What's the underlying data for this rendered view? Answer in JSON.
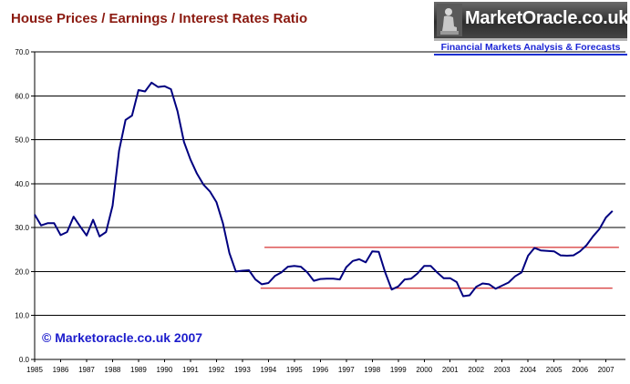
{
  "title": "House Prices  / Earnings / Interest Rates Ratio",
  "logo": {
    "name": "MarketOracle.co.uk",
    "tagline": "Financial Markets Analysis & Forecasts"
  },
  "copyright": "© Marketoracle.co.uk 2007",
  "colors": {
    "title": "#8b1a10",
    "line": "#000080",
    "ref_lines": "#cc0000",
    "copyright": "#1c1ccc",
    "tagline": "#1c26d6"
  },
  "chart_data": {
    "type": "line",
    "title": "House Prices  / Earnings / Interest Rates Ratio",
    "xlabel": "",
    "ylabel": "",
    "ylim": [
      0,
      70
    ],
    "grid": true,
    "x_tick_labels": [
      "1985",
      "1986",
      "1987",
      "1988",
      "1989",
      "1990",
      "1991",
      "1992",
      "1993",
      "1994",
      "1995",
      "1996",
      "1997",
      "1998",
      "1999",
      "2000",
      "2001",
      "2002",
      "2003",
      "2004",
      "2005",
      "2006",
      "2007"
    ],
    "y_tick_labels": [
      "0.0",
      "10.0",
      "20.0",
      "30.0",
      "40.0",
      "50.0",
      "60.0",
      "70.0"
    ],
    "series": [
      {
        "x": [
          1985.0,
          1985.25,
          1985.5,
          1985.75,
          1986.0,
          1986.25,
          1986.5,
          1986.75,
          1987.0,
          1987.25,
          1987.5,
          1987.75,
          1988.0,
          1988.25,
          1988.5,
          1988.75,
          1989.0,
          1989.25,
          1989.5,
          1989.75,
          1990.0,
          1990.25,
          1990.5,
          1990.75,
          1991.0,
          1991.25,
          1991.5,
          1991.75,
          1992.0,
          1992.25,
          1992.5,
          1992.75,
          1993.0,
          1993.25,
          1993.5,
          1993.75,
          1994.0,
          1994.25,
          1994.5,
          1994.75,
          1995.0,
          1995.25,
          1995.5,
          1995.75,
          1996.0,
          1996.25,
          1996.5,
          1996.75,
          1997.0,
          1997.25,
          1997.5,
          1997.75,
          1998.0,
          1998.25,
          1998.5,
          1998.75,
          1999.0,
          1999.25,
          1999.5,
          1999.75,
          2000.0,
          2000.25,
          2000.5,
          2000.75,
          2001.0,
          2001.25,
          2001.5,
          2001.75,
          2002.0,
          2002.25,
          2002.5,
          2002.75,
          2003.0,
          2003.25,
          2003.5,
          2003.75,
          2004.0,
          2004.25,
          2004.5,
          2004.75,
          2005.0,
          2005.25,
          2005.5,
          2005.75,
          2006.0,
          2006.25,
          2006.5,
          2006.75,
          2007.0,
          2007.25
        ],
        "values": [
          33.0,
          30.5,
          31.0,
          31.0,
          28.3,
          29.0,
          32.5,
          30.3,
          28.2,
          31.8,
          28.0,
          29.0,
          35.0,
          47.5,
          54.5,
          55.5,
          61.3,
          61.0,
          63.0,
          62.0,
          62.2,
          61.5,
          56.5,
          49.5,
          45.5,
          42.3,
          39.8,
          38.2,
          35.8,
          31.0,
          24.2,
          20.0,
          20.2,
          20.3,
          18.2,
          17.1,
          17.4,
          19.0,
          19.8,
          21.1,
          21.3,
          21.1,
          19.8,
          17.9,
          18.3,
          18.4,
          18.4,
          18.2,
          21.0,
          22.4,
          22.8,
          22.1,
          24.6,
          24.5,
          19.8,
          15.9,
          16.6,
          18.2,
          18.4,
          19.6,
          21.3,
          21.3,
          19.8,
          18.5,
          18.5,
          17.6,
          14.4,
          14.6,
          16.5,
          17.3,
          17.1,
          16.1,
          16.8,
          17.5,
          18.9,
          19.8,
          23.6,
          25.4,
          24.8,
          24.7,
          24.6,
          23.7,
          23.6,
          23.7,
          24.6,
          26.0,
          28.0,
          29.7,
          32.3,
          33.8
        ]
      }
    ],
    "reference_lines": [
      {
        "y": 25.5,
        "x_start": 1993.85,
        "x_end": 2007.5
      },
      {
        "y": 16.2,
        "x_start": 1993.7,
        "x_end": 2007.25
      }
    ]
  }
}
